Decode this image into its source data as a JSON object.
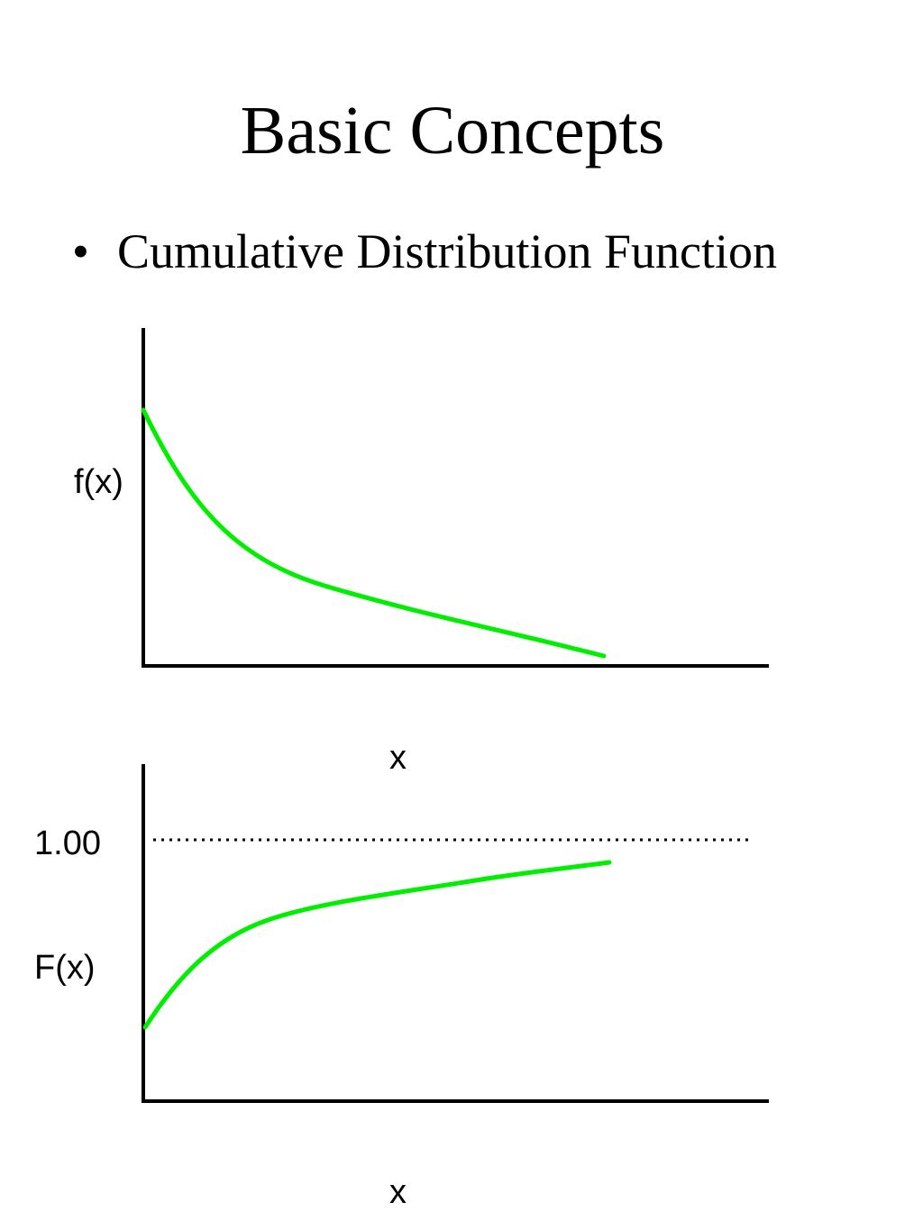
{
  "slide": {
    "title": "Basic Concepts",
    "bullet_marker": "•",
    "bullet_text": "Cumulative Distribution Function"
  },
  "colors": {
    "curve": "#00ee00",
    "axis": "#000000",
    "text": "#000000"
  },
  "top_plot": {
    "y_label": "f(x)",
    "x_label": "x",
    "curve_shape": "decreasing"
  },
  "bottom_plot": {
    "y_label": "F(x)",
    "x_label": "x",
    "reference_label": "1.00",
    "reference_line_style": "dotted",
    "curve_shape": "increasing"
  }
}
